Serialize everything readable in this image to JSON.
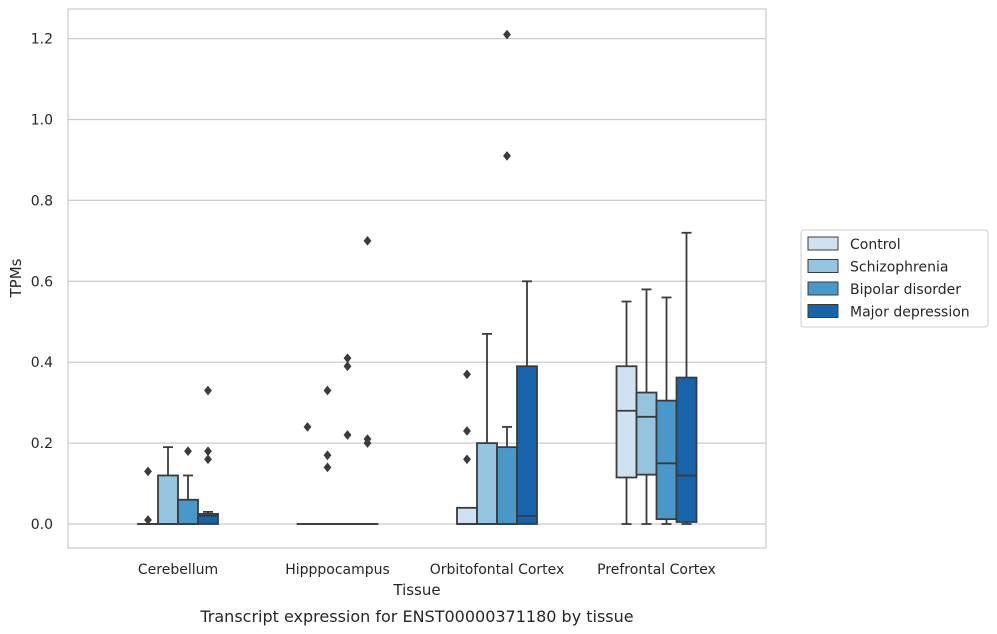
{
  "caption": "Transcript expression for ENST00000371180 by tissue",
  "chart_data": {
    "type": "box",
    "title": "",
    "xlabel": "Tissue",
    "ylabel": "TPMs",
    "ylim": [
      -0.06,
      1.27
    ],
    "yticks": [
      0.0,
      0.2,
      0.4,
      0.6,
      0.8,
      1.0,
      1.2
    ],
    "ytick_labels": [
      "0.0",
      "0.2",
      "0.4",
      "0.6",
      "0.8",
      "1.0",
      "1.2"
    ],
    "grid": "horizontal",
    "legend_placement": "right",
    "categories": [
      "Cerebellum",
      "Hipppocampus",
      "Orbitofontal Cortex",
      "Prefrontal Cortex"
    ],
    "series": [
      {
        "name": "Control",
        "color": "#d0e1f2",
        "boxes": [
          {
            "whisker_low": 0.0,
            "q1": 0.0,
            "median": 0.0,
            "q3": 0.0,
            "whisker_high": 0.0,
            "outliers": [
              0.13,
              0.01
            ]
          },
          {
            "whisker_low": 0.0,
            "q1": 0.0,
            "median": 0.0,
            "q3": 0.0,
            "whisker_high": 0.0,
            "outliers": [
              0.24
            ]
          },
          {
            "whisker_low": 0.0,
            "q1": 0.0,
            "median": 0.0,
            "q3": 0.04,
            "whisker_high": 0.04,
            "outliers": [
              0.37,
              0.23,
              0.16
            ]
          },
          {
            "whisker_low": 0.0,
            "q1": 0.115,
            "median": 0.28,
            "q3": 0.39,
            "whisker_high": 0.55,
            "outliers": []
          }
        ]
      },
      {
        "name": "Schizophrenia",
        "color": "#94c4df",
        "boxes": [
          {
            "whisker_low": 0.0,
            "q1": 0.0,
            "median": 0.0,
            "q3": 0.12,
            "whisker_high": 0.19,
            "outliers": []
          },
          {
            "whisker_low": 0.0,
            "q1": 0.0,
            "median": 0.0,
            "q3": 0.0,
            "whisker_high": 0.0,
            "outliers": [
              0.33,
              0.17,
              0.14
            ]
          },
          {
            "whisker_low": 0.0,
            "q1": 0.0,
            "median": 0.0,
            "q3": 0.2,
            "whisker_high": 0.47,
            "outliers": []
          },
          {
            "whisker_low": 0.0,
            "q1": 0.122,
            "median": 0.265,
            "q3": 0.325,
            "whisker_high": 0.58,
            "outliers": []
          }
        ]
      },
      {
        "name": "Bipolar disorder",
        "color": "#4a98c9",
        "boxes": [
          {
            "whisker_low": 0.0,
            "q1": 0.0,
            "median": 0.0,
            "q3": 0.06,
            "whisker_high": 0.12,
            "outliers": [
              0.18
            ]
          },
          {
            "whisker_low": 0.0,
            "q1": 0.0,
            "median": 0.0,
            "q3": 0.0,
            "whisker_high": 0.0,
            "outliers": [
              0.41,
              0.39,
              0.22
            ]
          },
          {
            "whisker_low": 0.0,
            "q1": 0.0,
            "median": 0.0,
            "q3": 0.19,
            "whisker_high": 0.24,
            "outliers": [
              1.21,
              0.91
            ]
          },
          {
            "whisker_low": 0.0,
            "q1": 0.012,
            "median": 0.15,
            "q3": 0.305,
            "whisker_high": 0.56,
            "outliers": []
          }
        ]
      },
      {
        "name": "Major depression",
        "color": "#1764ab",
        "boxes": [
          {
            "whisker_low": 0.0,
            "q1": 0.0,
            "median": 0.02,
            "q3": 0.025,
            "whisker_high": 0.03,
            "outliers": [
              0.33,
              0.18,
              0.16
            ]
          },
          {
            "whisker_low": 0.0,
            "q1": 0.0,
            "median": 0.0,
            "q3": 0.0,
            "whisker_high": 0.0,
            "outliers": [
              0.7,
              0.21,
              0.2
            ]
          },
          {
            "whisker_low": 0.0,
            "q1": 0.0,
            "median": 0.02,
            "q3": 0.39,
            "whisker_high": 0.6,
            "outliers": []
          },
          {
            "whisker_low": 0.0,
            "q1": 0.005,
            "median": 0.12,
            "q3": 0.362,
            "whisker_high": 0.72,
            "outliers": []
          }
        ]
      }
    ]
  }
}
